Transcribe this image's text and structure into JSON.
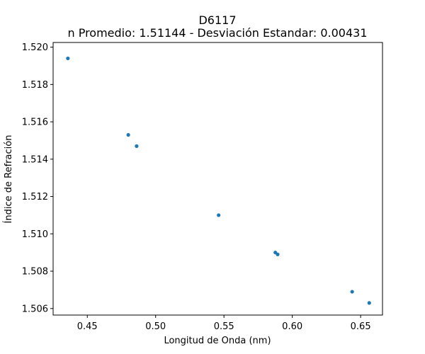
{
  "chart_data": {
    "type": "scatter",
    "title": "D6117",
    "subtitle": "n Promedio: 1.51144 - Desviación Estandar: 0.00431",
    "xlabel": "Longitud de Onda (nm)",
    "ylabel": "Índice de Refración",
    "xlim": [
      0.425,
      0.666
    ],
    "ylim": [
      1.50565,
      1.52025
    ],
    "xticks": [
      0.45,
      0.5,
      0.55,
      0.6,
      0.65
    ],
    "xtick_labels": [
      "0.45",
      "0.50",
      "0.55",
      "0.60",
      "0.65"
    ],
    "yticks": [
      1.506,
      1.508,
      1.51,
      1.512,
      1.514,
      1.516,
      1.518,
      1.52
    ],
    "ytick_labels": [
      "1.506",
      "1.508",
      "1.510",
      "1.512",
      "1.514",
      "1.516",
      "1.518",
      "1.520"
    ],
    "grid": false,
    "marker_color": "#1f77b4",
    "series": [
      {
        "points": [
          {
            "x": 0.4358,
            "y": 1.5194
          },
          {
            "x": 0.48,
            "y": 1.5153
          },
          {
            "x": 0.4861,
            "y": 1.5147
          },
          {
            "x": 0.5461,
            "y": 1.511
          },
          {
            "x": 0.5876,
            "y": 1.509
          },
          {
            "x": 0.5893,
            "y": 1.5089
          },
          {
            "x": 0.6438,
            "y": 1.5069
          },
          {
            "x": 0.6563,
            "y": 1.5063
          }
        ]
      }
    ]
  }
}
